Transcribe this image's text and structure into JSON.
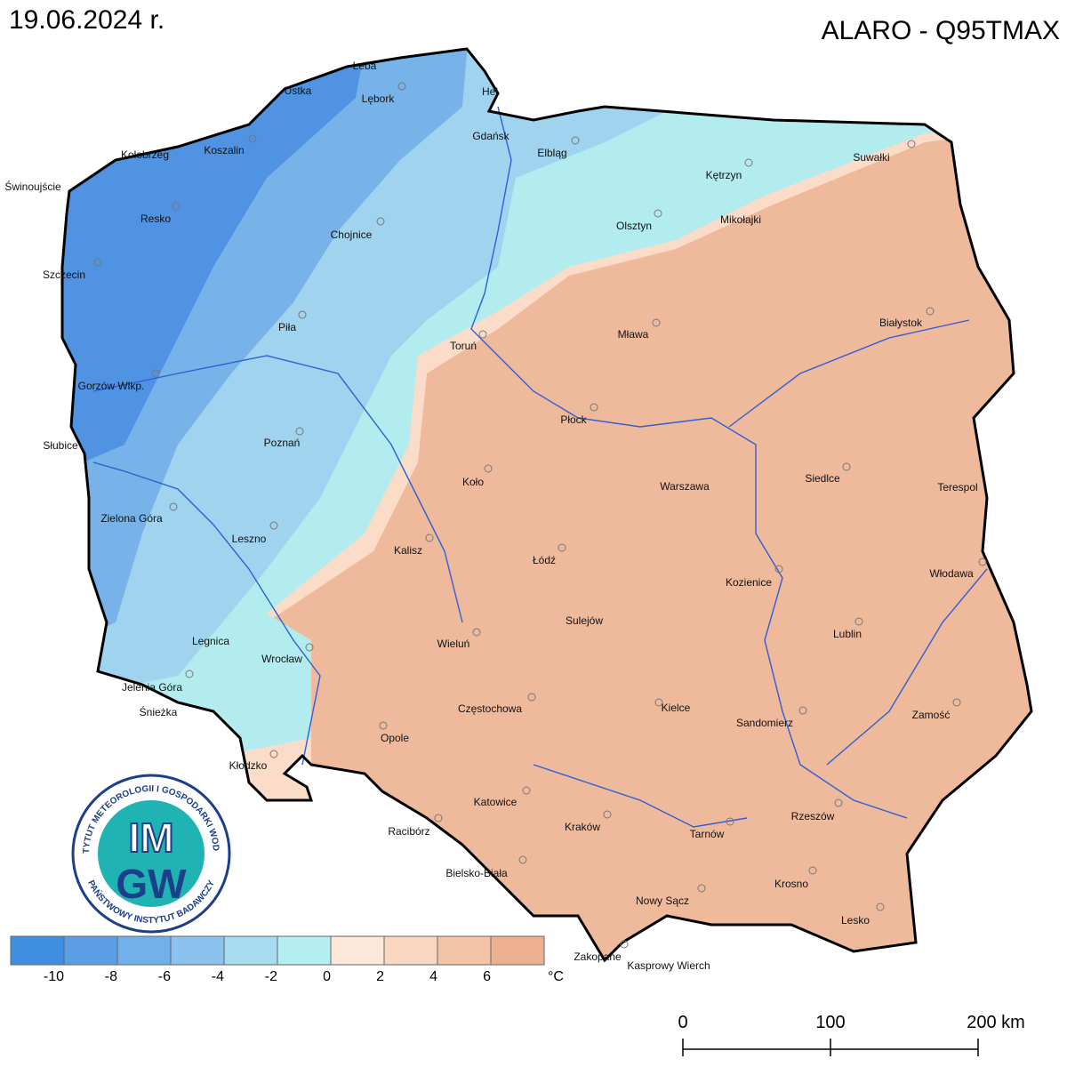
{
  "header": {
    "date": "19.06.2024 r.",
    "title": "ALARO - Q95TMAX"
  },
  "cities": [
    "Łeba",
    "Ustka",
    "Lębork",
    "Hel",
    "Gdańsk",
    "Elbląg",
    "Kętrzyn",
    "Suwałki",
    "Kołobrzeg",
    "Koszalin",
    "Świnoujście",
    "Resko",
    "Chojnice",
    "Mikołajki",
    "Olsztyn",
    "Szczecin",
    "Piła",
    "Toruń",
    "Mława",
    "Białystok",
    "Gorzów Wlkp.",
    "Płock",
    "Słubice",
    "Poznań",
    "Koło",
    "Warszawa",
    "Siedlce",
    "Terespol",
    "Zielona Góra",
    "Leszno",
    "Kalisz",
    "Łódź",
    "Włodawa",
    "Kozienice",
    "Sulejów",
    "Lublin",
    "Legnica",
    "Wieluń",
    "Wrocław",
    "Jelenia Góra",
    "Częstochowa",
    "Kielce",
    "Zamość",
    "Śnieżka",
    "Sandomierz",
    "Opole",
    "Kłodzko",
    "Katowice",
    "Rzeszów",
    "Kraków",
    "Racibórz",
    "Tarnów",
    "Bielsko-Biała",
    "Krosno",
    "Nowy Sącz",
    "Lesko",
    "Zakopane",
    "Kasprowy Wierch"
  ],
  "legend": {
    "ticks": [
      -10,
      -8,
      -6,
      -4,
      -2,
      0,
      2,
      4,
      6
    ],
    "unit": "°C",
    "colors": [
      "#3f8ee2",
      "#5a9fe6",
      "#72b0ea",
      "#8cc3ee",
      "#a7dbf0",
      "#b5eef0",
      "#fde8d8",
      "#f9d6c0",
      "#f3c4a8",
      "#edb191"
    ]
  },
  "scale_bar": {
    "labels": [
      "0",
      "100",
      "200 km"
    ]
  },
  "logo": {
    "ring_top": "INSTYTUT METEOROLOGII I GOSPODARKI WODNEJ",
    "ring_bottom": "PAŃSTWOWY INSTYTUT BADAWCZY",
    "line1": "IM",
    "line2": "GW"
  }
}
